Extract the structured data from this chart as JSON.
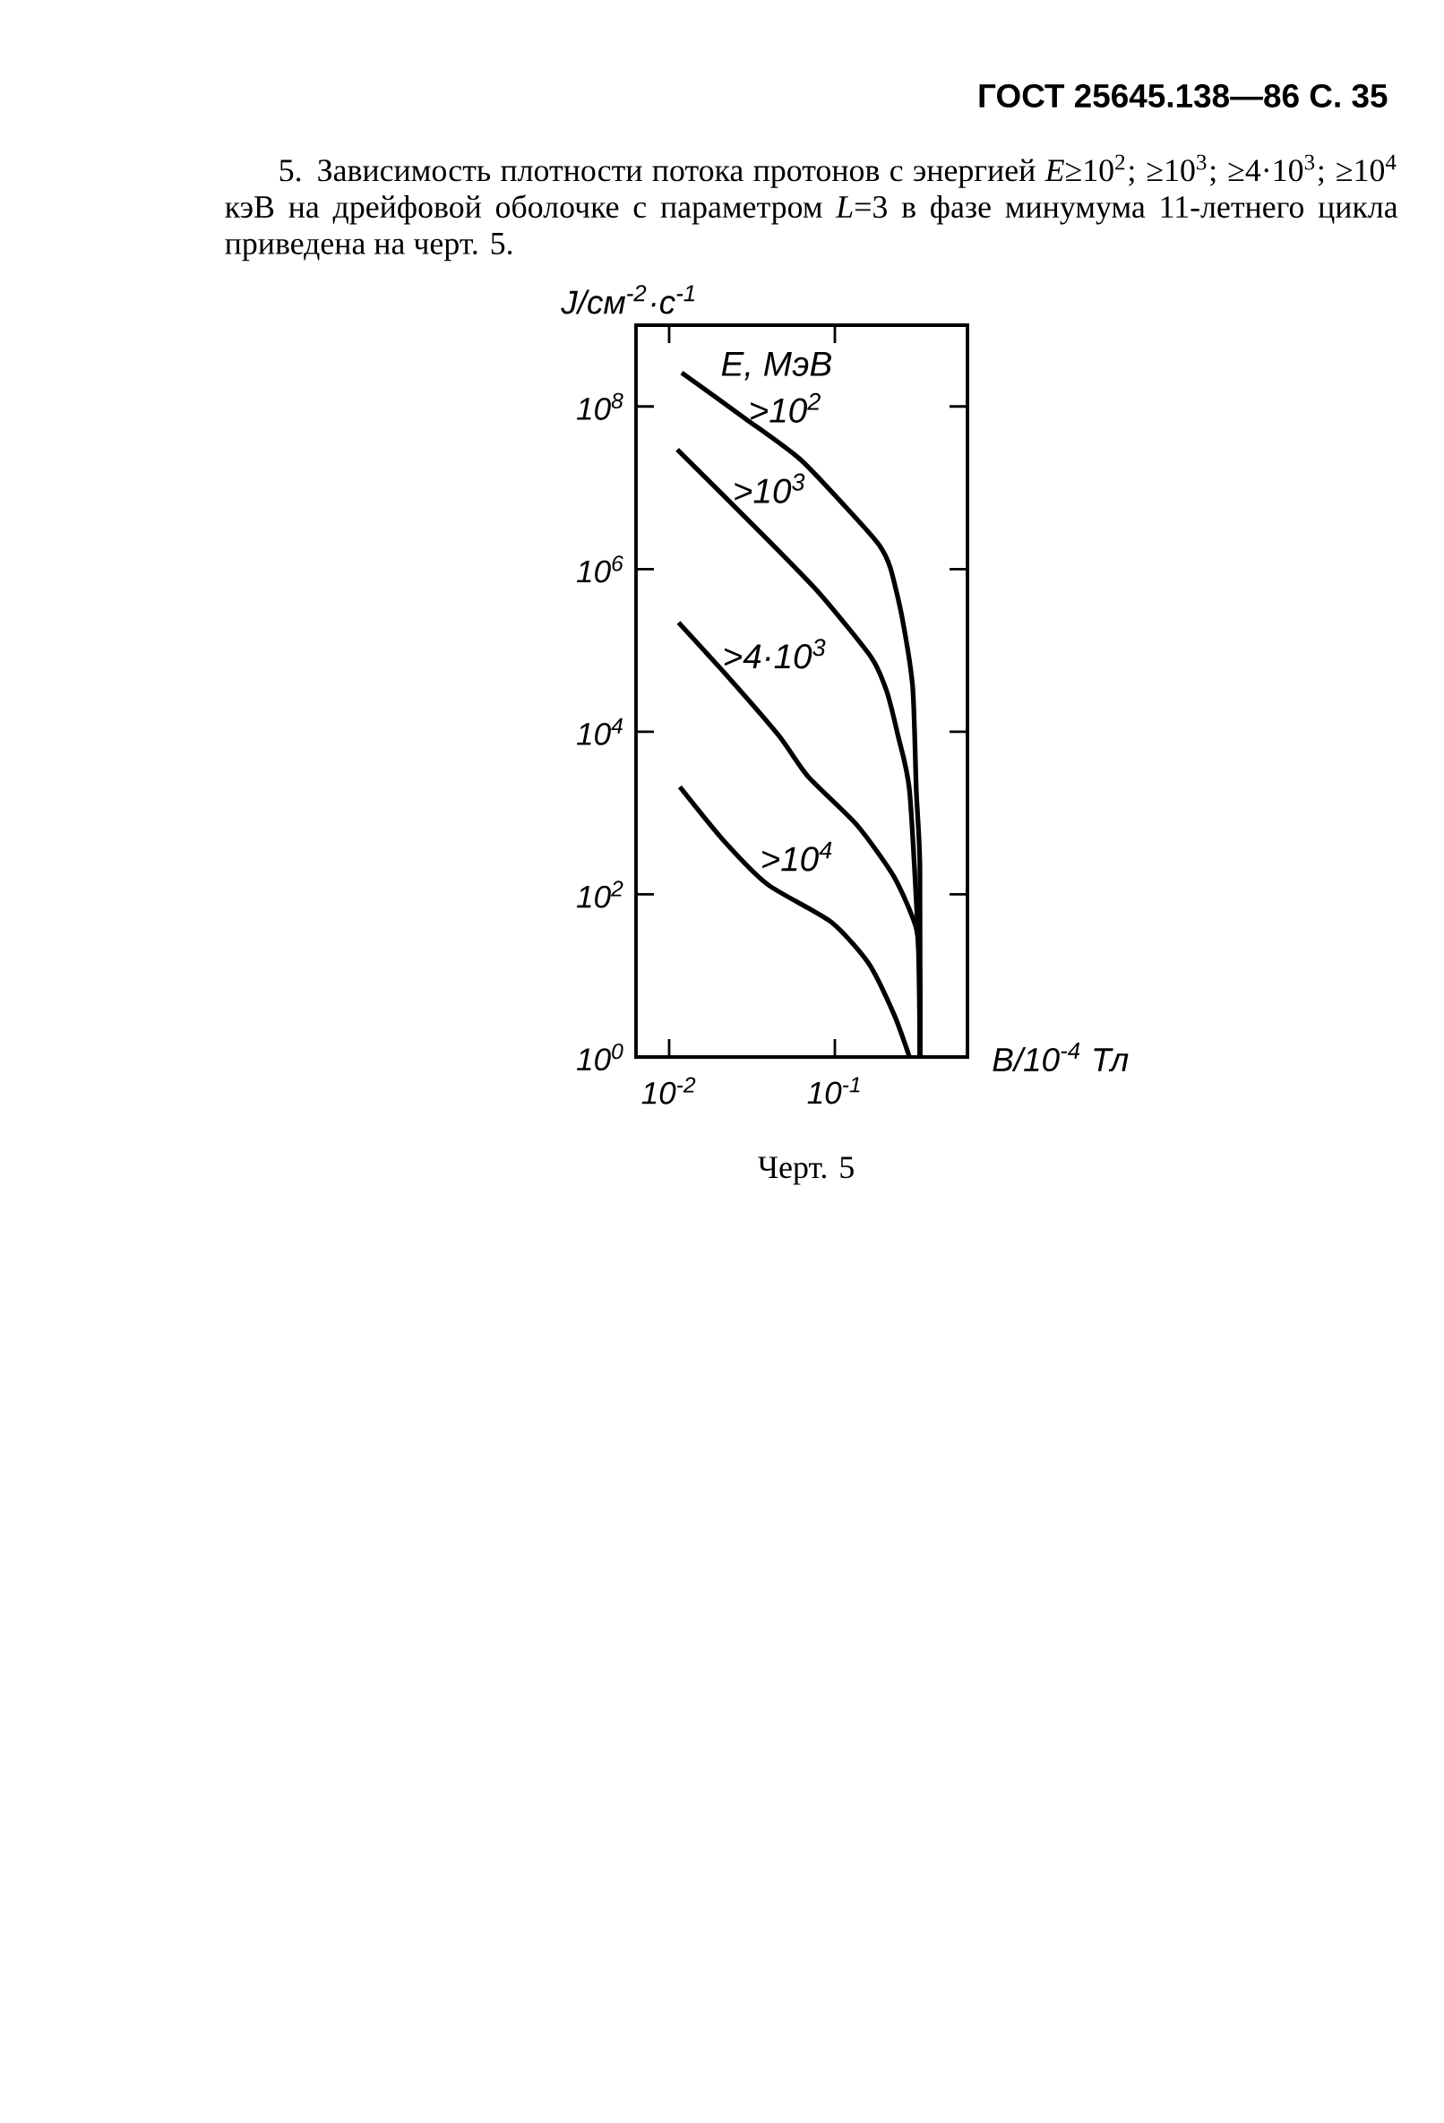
{
  "chart_data": {
    "type": "line",
    "title": "5. Зависимость плотности потока протонов с энергией *E*≥10$^{2}$; ≥10$^{3}$; ≥4·10$^{3}$; ≥10$^{4}$ кэВ на дрейфовой оболочке с параметром *L*=3 в фазе минумума 11-летнего цикла приведена на черт. 5.",
    "annotations": [
      "ГОСТ 25645.138—86 С. 35",
      "E, МэВ",
      "Черт. 5"
    ],
    "xlabel": "B/10$^{-4}$ Тл",
    "ylabel": "J/см$^{-2}$·с$^{-1}$",
    "log": "xy",
    "xlim": [
      0.00631,
      0.631
    ],
    "ylim": [
      1,
      1000000000
    ],
    "xticks": [
      {
        "value": 0.01,
        "label": "10$^{-2}$"
      },
      {
        "value": 0.1,
        "label": "10$^{-1}$"
      }
    ],
    "yticks": [
      {
        "value": 1,
        "label": "10$^{0}$"
      },
      {
        "value": 100,
        "label": "10$^{2}$"
      },
      {
        "value": 10000,
        "label": "10$^{4}$"
      },
      {
        "value": 1000000,
        "label": "10$^{6}$"
      },
      {
        "value": 100000000,
        "label": "10$^{8}$"
      }
    ],
    "legend": false,
    "series": [
      {
        "name": ">10$^{2}$",
        "color": "#000000",
        "x": [
          0.0119,
          0.0288,
          0.0624,
          0.136,
          0.186,
          0.216,
          0.254,
          0.295,
          0.31,
          0.326,
          0.326
        ],
        "values": [
          260000000,
          71000000,
          22000000,
          4100000,
          1950000,
          1040000,
          260000,
          35000,
          1900,
          220,
          1
        ]
      },
      {
        "name": ">10$^{3}$",
        "color": "#000000",
        "x": [
          0.0112,
          0.037,
          0.081,
          0.166,
          0.206,
          0.24,
          0.282,
          0.318,
          0.326
        ],
        "values": [
          29500000,
          2600000,
          500000,
          82000,
          31000,
          9100,
          1900,
          27,
          1
        ]
      },
      {
        "name": ">4·10$^{3}$",
        "color": "#000000",
        "x": [
          0.0114,
          0.0234,
          0.046,
          0.069,
          0.136,
          0.228,
          0.31,
          0.326,
          0.326
        ],
        "values": [
          220000,
          44000,
          8900,
          2800,
          710,
          163,
          38,
          9.3,
          1
        ]
      },
      {
        "name": ">10$^{4}$",
        "color": "#000000",
        "x": [
          0.0116,
          0.0211,
          0.0394,
          0.0946,
          0.159,
          0.228,
          0.282
        ],
        "values": [
          2100,
          470,
          132,
          46,
          14.4,
          3.3,
          1
        ]
      }
    ]
  }
}
